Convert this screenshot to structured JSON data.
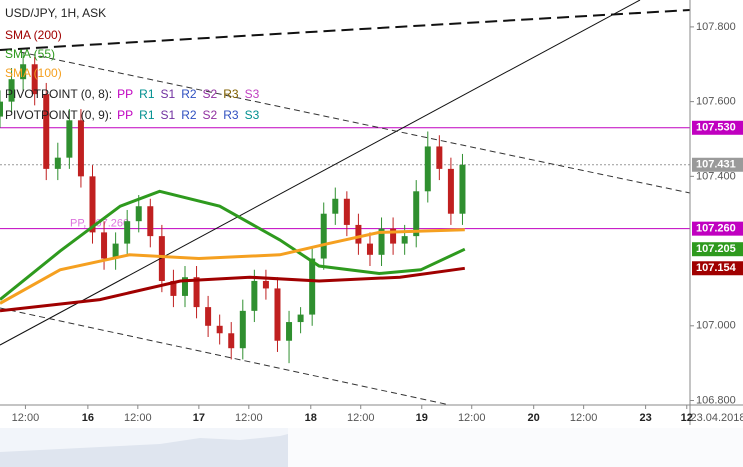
{
  "chart_data": {
    "type": "candlestick",
    "title": "USD/JPY, 1H, ASK",
    "x": [
      -19,
      -16.5,
      -14,
      -11.5,
      -9,
      -6.5,
      -4,
      -1.5,
      1,
      3.5,
      6,
      8.5,
      11,
      13.5,
      16,
      18.5,
      21,
      23.5,
      26,
      28.5,
      31,
      33.5,
      36,
      38.5,
      41,
      43.5,
      46,
      48.5,
      51,
      53.5,
      56,
      58.5,
      61,
      63.5,
      66,
      68.5,
      71,
      73.5,
      76,
      78.5,
      81
    ],
    "open": [
      107.56,
      107.6,
      107.66,
      107.7,
      107.62,
      107.42,
      107.45,
      107.55,
      107.4,
      107.25,
      107.18,
      107.22,
      107.28,
      107.32,
      107.24,
      107.12,
      107.08,
      107.13,
      107.05,
      107.0,
      106.98,
      106.94,
      107.04,
      107.12,
      107.1,
      106.96,
      107.01,
      107.03,
      107.18,
      107.3,
      107.34,
      107.27,
      107.22,
      107.19,
      107.26,
      107.22,
      107.24,
      107.36,
      107.48,
      107.42,
      107.3
    ],
    "high": [
      107.63,
      107.69,
      107.73,
      107.72,
      107.65,
      107.49,
      107.58,
      107.58,
      107.43,
      107.28,
      107.25,
      107.31,
      107.35,
      107.34,
      107.27,
      107.15,
      107.16,
      107.16,
      107.08,
      107.03,
      107.01,
      107.07,
      107.15,
      107.15,
      107.13,
      107.04,
      107.05,
      107.21,
      107.33,
      107.37,
      107.36,
      107.3,
      107.25,
      107.29,
      107.29,
      107.27,
      107.39,
      107.52,
      107.51,
      107.45,
      107.46
    ],
    "low": [
      107.53,
      107.57,
      107.63,
      107.59,
      107.39,
      107.39,
      107.42,
      107.37,
      107.22,
      107.15,
      107.15,
      107.19,
      107.25,
      107.21,
      107.09,
      107.05,
      107.05,
      107.02,
      106.97,
      106.95,
      106.91,
      106.91,
      107.01,
      107.07,
      106.93,
      106.9,
      106.98,
      107.0,
      107.15,
      107.27,
      107.24,
      107.19,
      107.16,
      107.16,
      107.19,
      107.19,
      107.21,
      107.33,
      107.39,
      107.27,
      107.27
    ],
    "close": [
      107.6,
      107.66,
      107.7,
      107.62,
      107.42,
      107.45,
      107.55,
      107.4,
      107.25,
      107.18,
      107.22,
      107.28,
      107.32,
      107.24,
      107.12,
      107.08,
      107.13,
      107.05,
      107.0,
      106.98,
      106.94,
      107.04,
      107.12,
      107.1,
      106.96,
      107.01,
      107.03,
      107.18,
      107.3,
      107.34,
      107.27,
      107.22,
      107.19,
      107.26,
      107.22,
      107.24,
      107.36,
      107.48,
      107.42,
      107.3,
      107.431
    ],
    "up_color": "#2f8f2f",
    "down_color": "#c02020",
    "overlays": [
      {
        "name": "SMA (200)",
        "color": "#a00000",
        "x": [
          -19,
          2.6,
          20,
          35,
          50,
          67.5,
          81.5
        ],
        "values": [
          107.04,
          107.07,
          107.12,
          107.13,
          107.12,
          107.13,
          107.154
        ]
      },
      {
        "name": "SMA (55)",
        "color": "#2e9a1e",
        "x": [
          -19,
          -6,
          7,
          15.5,
          28.5,
          41.5,
          50,
          63,
          72,
          81.5
        ],
        "values": [
          107.07,
          107.2,
          107.32,
          107.36,
          107.32,
          107.23,
          107.16,
          107.14,
          107.15,
          107.205
        ]
      },
      {
        "name": "SMA (100)",
        "color": "#f5a020",
        "x": [
          -19,
          -6,
          9,
          24,
          41.5,
          52,
          63,
          81.5
        ],
        "values": [
          107.06,
          107.15,
          107.19,
          107.18,
          107.19,
          107.22,
          107.25,
          107.257
        ]
      }
    ],
    "pivot_legends": [
      {
        "label": "PIVOTPOINT (0, 8):",
        "items": [
          {
            "text": "PP",
            "color": "#c000c0"
          },
          {
            "text": "R1",
            "color": "#009090"
          },
          {
            "text": "S1",
            "color": "#7030a0"
          },
          {
            "text": "R2",
            "color": "#3050c0"
          },
          {
            "text": "S2",
            "color": "#9030a0"
          },
          {
            "text": "R3",
            "color": "#806000"
          },
          {
            "text": "S3",
            "color": "#c040c0"
          }
        ]
      },
      {
        "label": "PIVOTPOINT (0, 9):",
        "items": [
          {
            "text": "PP",
            "color": "#c000c0"
          },
          {
            "text": "R1",
            "color": "#009090"
          },
          {
            "text": "S1",
            "color": "#7030a0"
          },
          {
            "text": "R2",
            "color": "#3050c0"
          },
          {
            "text": "S2",
            "color": "#9030a0"
          },
          {
            "text": "R3",
            "color": "#3050c0"
          },
          {
            "text": "S3",
            "color": "#009090"
          }
        ]
      }
    ],
    "pivot_lines": [
      {
        "value": 107.53,
        "color": "#c000c0"
      },
      {
        "value": 107.26,
        "color": "#c000c0",
        "label": "PP, 107.260"
      }
    ],
    "price_labels": [
      {
        "value": 107.53,
        "label": "107.530",
        "color": "#c000c0"
      },
      {
        "value": 107.431,
        "label": "107.431",
        "color": "#9a9a9a"
      },
      {
        "value": 107.26,
        "label": "107.260",
        "color": "#c000c0"
      },
      {
        "value": 107.205,
        "label": "107.205",
        "color": "#2e9a1e"
      },
      {
        "value": 107.154,
        "label": "107.154",
        "color": "#a00000"
      }
    ],
    "ylim": [
      106.788,
      107.872
    ],
    "yticks": [
      {
        "value": 107.8,
        "label": "107.800"
      },
      {
        "value": 107.6,
        "label": "107.600"
      },
      {
        "value": 107.4,
        "label": "107.400"
      },
      {
        "value": 107.0,
        "label": "107.000"
      },
      {
        "value": 106.8,
        "label": "106.800"
      }
    ],
    "xlim": [
      -19,
      130.2
    ],
    "xticks": [
      {
        "value": -13.5,
        "label": "12:00"
      },
      {
        "value": 0,
        "label": "16"
      },
      {
        "value": 10.8,
        "label": "12:00"
      },
      {
        "value": 24,
        "label": "17"
      },
      {
        "value": 34.8,
        "label": "12:00"
      },
      {
        "value": 48.2,
        "label": "18"
      },
      {
        "value": 59,
        "label": "12:00"
      },
      {
        "value": 72.2,
        "label": "19"
      },
      {
        "value": 83,
        "label": "12:00"
      },
      {
        "value": 96.4,
        "label": "20"
      },
      {
        "value": 107.2,
        "label": "12:00"
      },
      {
        "value": 120.6,
        "label": "23"
      },
      {
        "value": 129.5,
        "label": "12"
      }
    ],
    "date_label": "23.04.2018"
  }
}
